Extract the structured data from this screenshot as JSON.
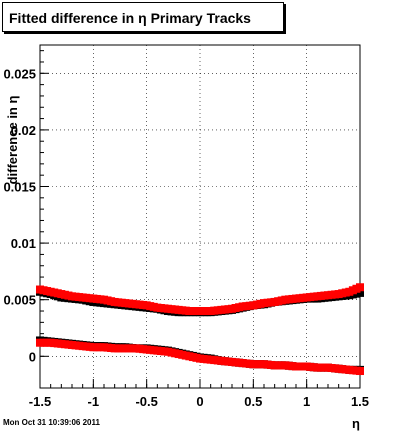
{
  "title": "Fitted difference in  η  Primary Tracks",
  "timestamp": "Mon Oct 31 10:39:06 2011",
  "chart_data": {
    "type": "scatter",
    "xlabel": "η",
    "ylabel": "difference in η",
    "xlim": [
      -1.5,
      1.5
    ],
    "ylim": [
      -0.0028,
      0.0275
    ],
    "x_ticks": [
      "-1.5",
      "-1",
      "-0.5",
      "0",
      "0.5",
      "1",
      "1.5"
    ],
    "x_tick_values": [
      -1.5,
      -1.0,
      -0.5,
      0.0,
      0.5,
      1.0,
      1.5
    ],
    "y_ticks": [
      "0",
      "0.005",
      "0.01",
      "0.015",
      "0.02",
      "0.025"
    ],
    "y_tick_values": [
      0,
      0.005,
      0.01,
      0.015,
      0.02,
      0.025
    ],
    "grid": true,
    "series": [
      {
        "color": "#000000",
        "x": [
          -1.5,
          -1.4,
          -1.3,
          -1.2,
          -1.1,
          -1.0,
          -0.9,
          -0.8,
          -0.7,
          -0.6,
          -0.5,
          -0.4,
          -0.3,
          -0.2,
          -0.1,
          0.0,
          0.1,
          0.2,
          0.3,
          0.4,
          0.5,
          0.6,
          0.7,
          0.8,
          0.9,
          1.0,
          1.1,
          1.2,
          1.3,
          1.4,
          1.5
        ],
        "y": [
          0.0057,
          0.0055,
          0.0052,
          0.0051,
          0.005,
          0.0048,
          0.0047,
          0.0046,
          0.0045,
          0.0044,
          0.0043,
          0.0042,
          0.004,
          0.0039,
          0.0039,
          0.0039,
          0.0039,
          0.004,
          0.0041,
          0.0043,
          0.0045,
          0.0046,
          0.0048,
          0.0049,
          0.005,
          0.0051,
          0.0051,
          0.0052,
          0.0053,
          0.0054,
          0.0056
        ]
      },
      {
        "color": "#ff0000",
        "x": [
          -1.5,
          -1.4,
          -1.3,
          -1.2,
          -1.1,
          -1.0,
          -0.9,
          -0.8,
          -0.7,
          -0.6,
          -0.5,
          -0.4,
          -0.3,
          -0.2,
          -0.1,
          0.0,
          0.1,
          0.2,
          0.3,
          0.4,
          0.5,
          0.6,
          0.7,
          0.8,
          0.9,
          1.0,
          1.1,
          1.2,
          1.3,
          1.4,
          1.5
        ],
        "y": [
          0.0059,
          0.0057,
          0.0055,
          0.0053,
          0.0052,
          0.0051,
          0.005,
          0.0048,
          0.0047,
          0.0046,
          0.0045,
          0.0043,
          0.0042,
          0.0041,
          0.004,
          0.004,
          0.004,
          0.0041,
          0.0042,
          0.0044,
          0.0045,
          0.0047,
          0.0048,
          0.005,
          0.0051,
          0.0052,
          0.0053,
          0.0054,
          0.0055,
          0.0057,
          0.0061
        ]
      },
      {
        "color": "#000000",
        "x": [
          -1.5,
          -1.4,
          -1.3,
          -1.2,
          -1.1,
          -1.0,
          -0.9,
          -0.8,
          -0.7,
          -0.6,
          -0.5,
          -0.4,
          -0.3,
          -0.2,
          -0.1,
          0.0,
          0.1,
          0.2,
          0.3,
          0.4,
          0.5,
          0.6,
          0.7,
          0.8,
          0.9,
          1.0,
          1.1,
          1.2,
          1.3,
          1.4,
          1.5
        ],
        "y": [
          0.0014,
          0.0013,
          0.0012,
          0.0011,
          0.001,
          0.0009,
          0.0009,
          0.0008,
          0.0008,
          0.0007,
          0.0007,
          0.0006,
          0.0005,
          0.0003,
          0.0001,
          -0.0001,
          -0.0002,
          -0.0004,
          -0.0005,
          -0.0006,
          -0.0007,
          -0.0007,
          -0.0008,
          -0.0008,
          -0.0009,
          -0.0009,
          -0.001,
          -0.001,
          -0.0011,
          -0.0012,
          -0.0012
        ]
      },
      {
        "color": "#ff0000",
        "x": [
          -1.5,
          -1.4,
          -1.3,
          -1.2,
          -1.1,
          -1.0,
          -0.9,
          -0.8,
          -0.7,
          -0.6,
          -0.5,
          -0.4,
          -0.3,
          -0.2,
          -0.1,
          0.0,
          0.1,
          0.2,
          0.3,
          0.4,
          0.5,
          0.6,
          0.7,
          0.8,
          0.9,
          1.0,
          1.1,
          1.2,
          1.3,
          1.4,
          1.5
        ],
        "y": [
          0.0012,
          0.0012,
          0.0011,
          0.001,
          0.0009,
          0.0008,
          0.0008,
          0.0007,
          0.0007,
          0.0007,
          0.0006,
          0.0005,
          0.0004,
          0.0002,
          0.0,
          -0.0002,
          -0.0003,
          -0.0004,
          -0.0005,
          -0.0006,
          -0.0007,
          -0.0007,
          -0.0008,
          -0.0008,
          -0.0009,
          -0.0009,
          -0.001,
          -0.001,
          -0.0011,
          -0.0012,
          -0.0013
        ]
      }
    ]
  }
}
